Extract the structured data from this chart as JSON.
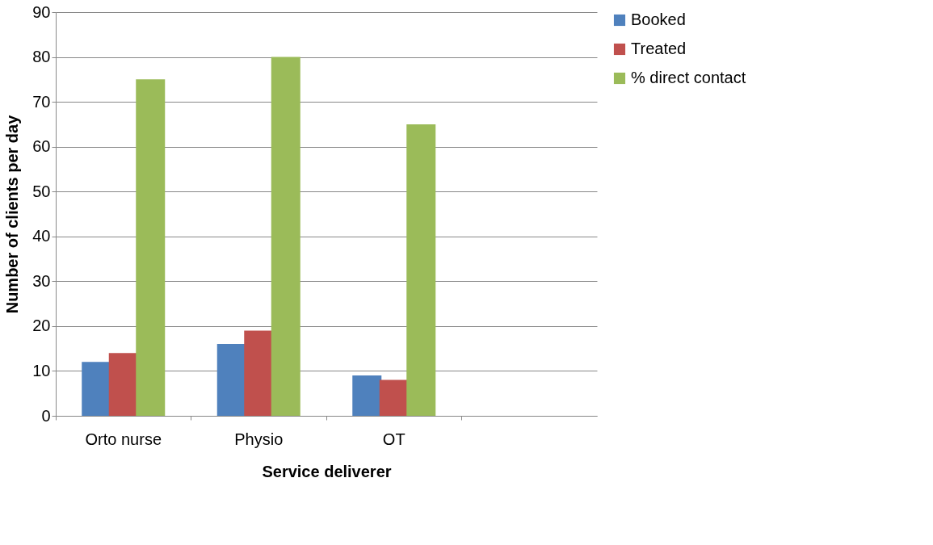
{
  "chart_data": {
    "type": "bar",
    "xlabel": "Service deliverer",
    "ylabel": "Number of clients per day",
    "categories": [
      "Orto nurse",
      "Physio",
      "OT",
      null
    ],
    "series": [
      {
        "name": "Booked",
        "color": "#4f81bd",
        "values": [
          12,
          16,
          9,
          null
        ]
      },
      {
        "name": "Treated",
        "color": "#c0504d",
        "values": [
          14,
          19,
          8,
          null
        ]
      },
      {
        "name": "% direct contact",
        "color": "#9bbb59",
        "values": [
          75,
          80,
          65,
          null
        ]
      }
    ],
    "ylim": [
      0,
      90
    ],
    "yticks": [
      0,
      10,
      20,
      30,
      40,
      50,
      60,
      70,
      80,
      90
    ],
    "grid": "y",
    "legend": "right"
  }
}
